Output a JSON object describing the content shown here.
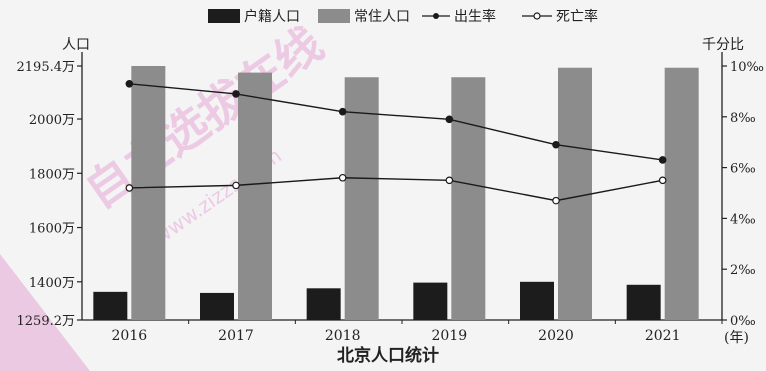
{
  "chart_data": {
    "type": "bar",
    "title": "北京人口统计",
    "categories": [
      "2016",
      "2017",
      "2018",
      "2019",
      "2020",
      "2021"
    ],
    "x_unit_label": "(年)",
    "legend": [
      "户籍人口",
      "常住人口",
      "出生率",
      "死亡率"
    ],
    "left_axis": {
      "label": "人口",
      "ylim": [
        1259.2,
        2195.4
      ],
      "ticks": [
        "1259.2万",
        "1400万",
        "1600万",
        "1800万",
        "2000万",
        "2195.4万"
      ],
      "tick_values": [
        1259.2,
        1400,
        1600,
        1800,
        2000,
        2195.4
      ]
    },
    "right_axis": {
      "label": "千分比",
      "ylim": [
        0,
        10
      ],
      "ticks": [
        "0‰",
        "2‰",
        "4‰",
        "6‰",
        "8‰",
        "10‰"
      ],
      "tick_values": [
        0,
        2,
        4,
        6,
        8,
        10
      ]
    },
    "series": [
      {
        "name": "户籍人口",
        "kind": "bar",
        "axis": "left",
        "color": "#1c1c1c",
        "values": [
          1363,
          1359,
          1376,
          1397,
          1400,
          1389
        ]
      },
      {
        "name": "常住人口",
        "kind": "bar",
        "axis": "left",
        "color": "#8c8c8c",
        "values": [
          2195.4,
          2171,
          2154,
          2154,
          2189,
          2189
        ]
      },
      {
        "name": "出生率",
        "kind": "line",
        "axis": "right",
        "marker": "filled",
        "color": "#1a1a1a",
        "values": [
          9.3,
          8.9,
          8.2,
          7.9,
          6.9,
          6.3
        ]
      },
      {
        "name": "死亡率",
        "kind": "line",
        "axis": "right",
        "marker": "hollow",
        "color": "#1a1a1a",
        "values": [
          5.2,
          5.3,
          5.6,
          5.5,
          4.7,
          5.5
        ]
      }
    ],
    "grid": false,
    "legend_position": "top"
  },
  "watermark": "自主选拔在线 www.zizzs.com"
}
